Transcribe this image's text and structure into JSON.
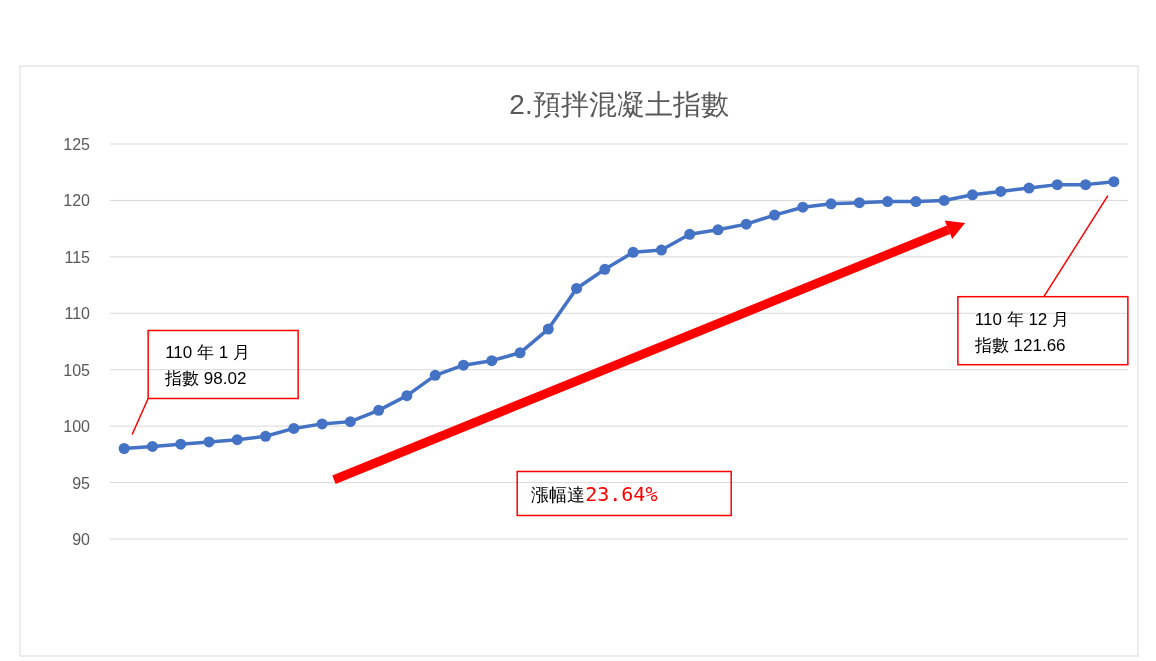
{
  "chart_data": {
    "type": "line",
    "title": "2.預拌混凝土指數",
    "categories": [
      null,
      null,
      null,
      null,
      null,
      null,
      null,
      null,
      null,
      null,
      null,
      null,
      null,
      null,
      null,
      null,
      null,
      null,
      null,
      null,
      null,
      null,
      null,
      null,
      null,
      null,
      null,
      null,
      null,
      null,
      null,
      null,
      null,
      null,
      null,
      null
    ],
    "series": [
      {
        "color": "#4472c4",
        "values": [
          98.02,
          98.2,
          98.4,
          98.6,
          98.8,
          99.1,
          99.8,
          100.2,
          100.4,
          101.4,
          102.7,
          104.5,
          105.4,
          105.8,
          106.5,
          108.6,
          112.2,
          113.9,
          115.4,
          115.6,
          117.0,
          117.4,
          117.9,
          118.7,
          119.4,
          119.7,
          119.8,
          119.9,
          119.9,
          120.0,
          120.5,
          120.8,
          121.1,
          121.4,
          121.4,
          121.66
        ]
      }
    ],
    "ylim": [
      90,
      125
    ],
    "yticks": [
      90,
      95,
      100,
      105,
      110,
      115,
      120,
      125
    ],
    "grid": "y",
    "marker": "circle",
    "line_style": "solid",
    "annotations": [
      "110 年 1 月",
      "指數 98.02",
      "110 年 12 月",
      "指數 121.66",
      "漲幅達23.64%"
    ]
  }
}
